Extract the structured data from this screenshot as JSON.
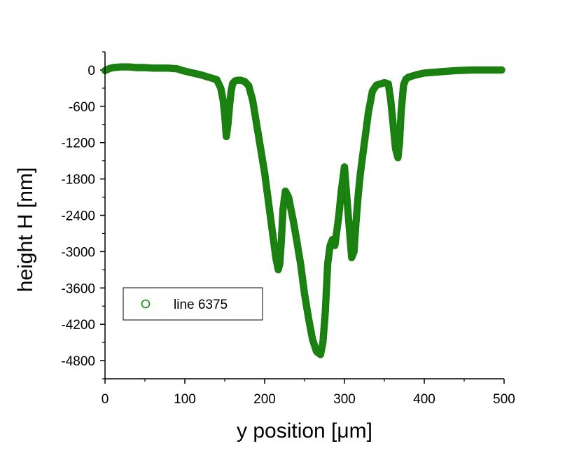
{
  "chart_data": {
    "type": "scatter",
    "xlabel": "y position [μm]",
    "ylabel": "height H [nm]",
    "xlim": [
      0,
      500
    ],
    "ylim": [
      -5100,
      300
    ],
    "x_ticks": [
      0,
      100,
      200,
      300,
      400,
      500
    ],
    "y_ticks": [
      0,
      -600,
      -1200,
      -1800,
      -2400,
      -3000,
      -3600,
      -4200,
      -4800
    ],
    "x_tick_labels": [
      "0",
      "100",
      "200",
      "300",
      "400",
      "500"
    ],
    "y_tick_labels": [
      "0",
      "-600",
      "-1200",
      "-1800",
      "-2400",
      "-3000",
      "-3600",
      "-4200",
      "-4800"
    ],
    "grid": false,
    "legend": {
      "position": "bottom-left",
      "entries": [
        "line 6375"
      ]
    },
    "series": [
      {
        "name": "line 6375",
        "color": "#1a8010",
        "marker": "open-circle",
        "x": [
          0,
          5,
          10,
          20,
          30,
          40,
          50,
          60,
          70,
          80,
          90,
          100,
          110,
          120,
          130,
          140,
          145,
          148,
          150,
          152,
          154,
          156,
          158,
          160,
          163,
          166,
          170,
          175,
          180,
          185,
          190,
          195,
          200,
          205,
          210,
          214,
          217,
          219,
          221,
          223,
          226,
          230,
          233,
          236,
          240,
          245,
          250,
          255,
          260,
          265,
          270,
          273,
          276,
          279,
          282,
          285,
          288,
          290,
          293,
          296,
          300,
          303,
          306,
          309,
          312,
          314,
          317,
          320,
          325,
          330,
          335,
          340,
          345,
          350,
          355,
          358,
          361,
          364,
          367,
          369,
          371,
          374,
          377,
          380,
          385,
          390,
          400,
          410,
          420,
          430,
          440,
          450,
          460,
          470,
          480,
          490,
          497
        ],
        "y": [
          -10,
          20,
          40,
          50,
          50,
          40,
          40,
          30,
          30,
          30,
          20,
          -20,
          -50,
          -80,
          -120,
          -160,
          -300,
          -500,
          -750,
          -1100,
          -900,
          -600,
          -350,
          -220,
          -180,
          -170,
          -170,
          -190,
          -260,
          -500,
          -900,
          -1300,
          -1700,
          -2200,
          -2700,
          -3100,
          -3300,
          -3200,
          -2800,
          -2300,
          -2000,
          -2100,
          -2300,
          -2500,
          -2800,
          -3200,
          -3700,
          -4100,
          -4450,
          -4650,
          -4700,
          -4500,
          -4000,
          -3200,
          -2900,
          -2800,
          -2900,
          -2700,
          -2400,
          -2000,
          -1600,
          -2100,
          -2600,
          -3100,
          -3000,
          -2600,
          -2100,
          -1700,
          -1200,
          -700,
          -350,
          -250,
          -230,
          -210,
          -230,
          -500,
          -900,
          -1300,
          -1450,
          -1200,
          -700,
          -250,
          -150,
          -120,
          -100,
          -80,
          -50,
          -40,
          -30,
          -20,
          -10,
          -5,
          0,
          0,
          0,
          0,
          0
        ]
      }
    ]
  }
}
